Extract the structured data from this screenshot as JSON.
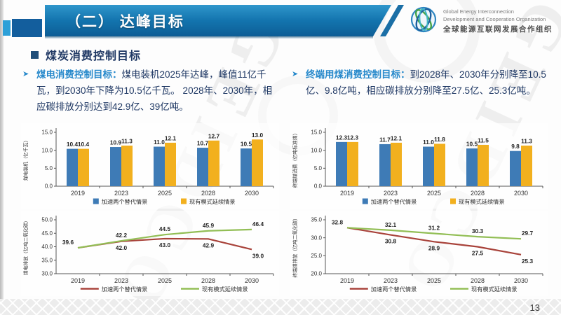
{
  "header": {
    "title": "（二） 达峰目标",
    "logo": {
      "line1": "Global Energy Interconnection",
      "line2": "Development and Cooperation Organization",
      "line3": "全球能源互联网发展合作组织"
    }
  },
  "section": {
    "title": "煤炭消费控制目标"
  },
  "bullets": [
    {
      "arrow": "➤",
      "lead": "煤电消费控制目标：",
      "text": "煤电装机2025年达峰，峰值11亿千瓦，到2030年下降为10.5亿千瓦。 2028年、2030年，相应碳排放分别达到42.9亿、39亿吨。"
    },
    {
      "arrow": "➤",
      "lead": "终端用煤消费控制目标：",
      "text": "到2028年、2030年分别降至10.5亿、9.8亿吨，相应碳排放分别降至27.5亿、25.3亿吨。"
    }
  ],
  "watermark": "GEIDCO",
  "page_number": "13",
  "colors": {
    "bar_blue": "#3e7bb6",
    "bar_yellow": "#f2b01e",
    "line_red": "#a8423a",
    "line_green": "#92be55",
    "header_blue": "#1374ae",
    "accent_text_blue": "#2789cb",
    "body_navy": "#1f3864"
  },
  "chart_data": [
    {
      "type": "bar",
      "ylabel": "煤电装机（亿千瓦）",
      "categories": [
        "2019",
        "2023",
        "2025",
        "2028",
        "2030"
      ],
      "ylim": [
        0,
        15
      ],
      "yticks": [
        "0.0",
        "5.0",
        "10.0",
        "15.0"
      ],
      "grid": false,
      "legend_position": "bottom",
      "series": [
        {
          "name": "加速两个替代情景",
          "color": "#3e7bb6",
          "values": [
            10.4,
            10.9,
            11.0,
            10.7,
            10.5
          ]
        },
        {
          "name": "现有模式延续情景",
          "color": "#f2b01e",
          "values": [
            10.4,
            11.3,
            12.1,
            12.7,
            13.0
          ]
        }
      ]
    },
    {
      "type": "bar",
      "ylabel": "终端煤消费（亿吨标准煤）",
      "categories": [
        "2019",
        "2023",
        "2025",
        "2028",
        "2030"
      ],
      "ylim": [
        0,
        15
      ],
      "yticks": [
        "0.0",
        "5.0",
        "10.0",
        "15.0"
      ],
      "grid": false,
      "legend_position": "bottom",
      "series": [
        {
          "name": "加速两个替代情景",
          "color": "#3e7bb6",
          "values": [
            12.3,
            11.7,
            11.0,
            10.5,
            9.8
          ]
        },
        {
          "name": "现有模式延续情景",
          "color": "#f2b01e",
          "values": [
            12.3,
            12.1,
            11.8,
            11.5,
            11.3
          ]
        }
      ]
    },
    {
      "type": "line",
      "ylabel": "煤电排放（亿吨二氧化碳）",
      "categories": [
        "2019",
        "2023",
        "2025",
        "2028",
        "2030"
      ],
      "ylim": [
        30,
        50
      ],
      "yticks": [
        "30.0",
        "35.0",
        "40.0",
        "45.0",
        "50.0"
      ],
      "grid": false,
      "legend_position": "bottom",
      "series": [
        {
          "name": "加速两个替代情景",
          "color": "#a8423a",
          "values": [
            39.6,
            42.0,
            43.0,
            42.9,
            39.0
          ]
        },
        {
          "name": "现有模式延续情景",
          "color": "#92be55",
          "values": [
            39.6,
            42.2,
            44.5,
            45.9,
            46.4
          ]
        }
      ]
    },
    {
      "type": "line",
      "ylabel": "终端煤排放（亿吨二氧化碳）",
      "categories": [
        "2019",
        "2023",
        "2025",
        "2028",
        "2030"
      ],
      "ylim": [
        20,
        35
      ],
      "yticks": [
        "20.0",
        "25.0",
        "30.0",
        "35.0"
      ],
      "grid": false,
      "legend_position": "bottom",
      "series": [
        {
          "name": "加速两个替代情景",
          "color": "#a8423a",
          "values": [
            32.8,
            30.8,
            28.9,
            27.5,
            25.3
          ]
        },
        {
          "name": "现有模式延续情景",
          "color": "#92be55",
          "values": [
            32.8,
            32.1,
            31.2,
            30.3,
            29.7
          ]
        }
      ]
    }
  ]
}
